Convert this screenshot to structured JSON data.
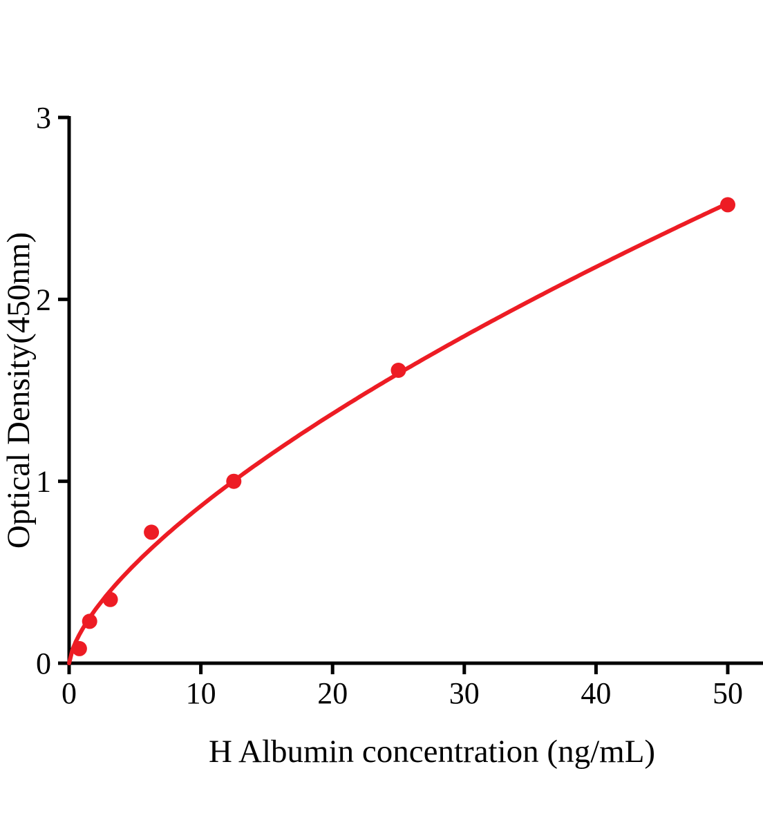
{
  "chart_data": {
    "type": "scatter",
    "title": "",
    "xlabel": "H Albumin concentration (ng/mL)",
    "ylabel": "Optical Density(450nm)",
    "points": [
      {
        "x": 0.78,
        "y": 0.08
      },
      {
        "x": 1.56,
        "y": 0.23
      },
      {
        "x": 3.125,
        "y": 0.35
      },
      {
        "x": 6.25,
        "y": 0.72
      },
      {
        "x": 12.5,
        "y": 1.0
      },
      {
        "x": 25,
        "y": 1.61
      },
      {
        "x": 50,
        "y": 2.52
      }
    ],
    "fit_curve": {
      "type": "power",
      "a": 0.186,
      "b": 0.667,
      "x_start": 0,
      "x_end": 50
    },
    "xticks": [
      "0",
      "10",
      "20",
      "30",
      "40",
      "50"
    ],
    "yticks": [
      "0",
      "1",
      "2",
      "3"
    ],
    "xlim": [
      0,
      52.7
    ],
    "ylim": [
      0,
      3
    ],
    "grid": false,
    "legend": null,
    "marker_color": "#ED1C24",
    "line_color": "#ED1C24",
    "axis_color": "#000000",
    "marker_radius": 11
  }
}
